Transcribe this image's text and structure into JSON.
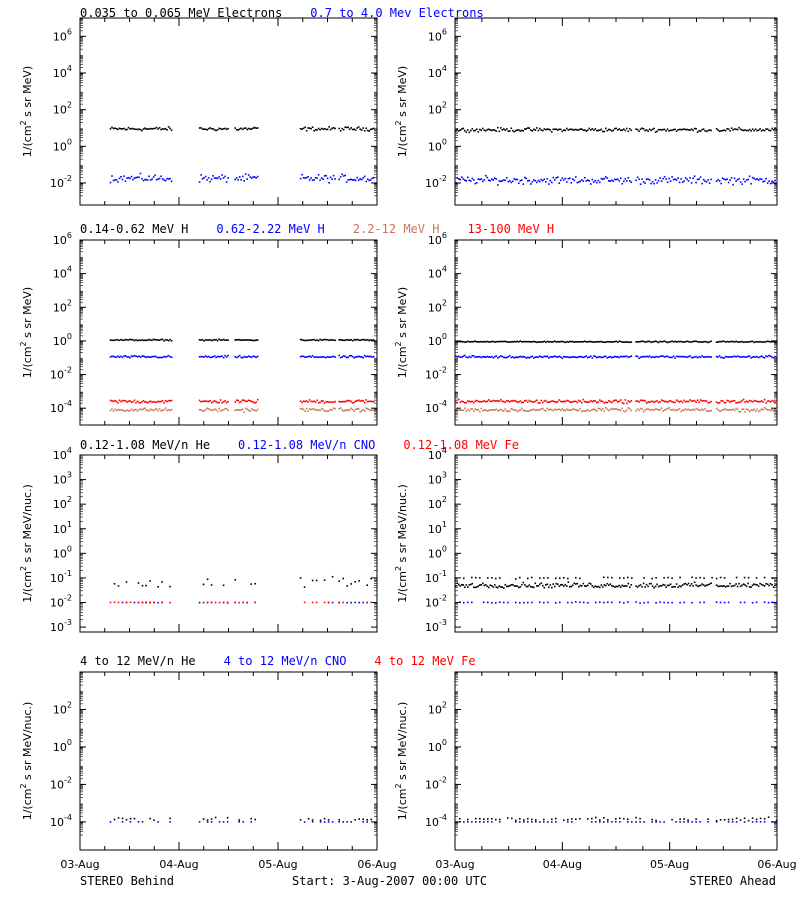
{
  "colors": {
    "black": "#000000",
    "blue": "#0000ff",
    "salmon": "#c8785a",
    "red": "#ff0000"
  },
  "x_ticks": [
    "03-Aug",
    "04-Aug",
    "05-Aug",
    "06-Aug"
  ],
  "footer": {
    "left": "STEREO Behind",
    "center": "Start:  3-Aug-2007 00:00 UTC",
    "right": "STEREO Ahead"
  },
  "chart_data": [
    {
      "type": "scatter",
      "row_title": [
        {
          "text": "0.035 to 0.065 MeV Electrons",
          "color": "black"
        },
        {
          "text": "0.7 to 4.0 Mev Electrons",
          "color": "blue"
        }
      ],
      "ylabel": {
        "pre": "1/(cm",
        "sup": "2",
        "post": " s sr MeV)"
      },
      "ylim_exp": [
        -3.2,
        7
      ],
      "y_ticks": [
        {
          "base": "10",
          "exp": "6",
          "value": 6
        },
        {
          "base": "10",
          "exp": "4",
          "value": 4
        },
        {
          "base": "10",
          "exp": "2",
          "value": 2
        },
        {
          "base": "10",
          "exp": "0",
          "value": 0
        },
        {
          "base": "10",
          "exp": "-2",
          "value": -2
        }
      ],
      "panels": [
        {
          "name": "STEREO Behind",
          "gaps": true,
          "series": [
            {
              "color": "black",
              "log10": 0.95,
              "scatter": 0.15
            },
            {
              "color": "blue",
              "log10": -1.75,
              "scatter": 0.3
            }
          ]
        },
        {
          "name": "STEREO Ahead",
          "gaps": false,
          "series": [
            {
              "color": "black",
              "log10": 0.9,
              "scatter": 0.15
            },
            {
              "color": "blue",
              "log10": -1.85,
              "scatter": 0.3
            }
          ]
        }
      ]
    },
    {
      "type": "scatter",
      "row_title": [
        {
          "text": "0.14-0.62 MeV H",
          "color": "black"
        },
        {
          "text": "0.62-2.22 MeV H",
          "color": "blue"
        },
        {
          "text": "2.2-12 MeV H",
          "color": "salmon"
        },
        {
          "text": "13-100 MeV H",
          "color": "red"
        }
      ],
      "ylabel": {
        "pre": "1/(cm",
        "sup": "2",
        "post": " s sr MeV)"
      },
      "ylim_exp": [
        -5,
        6
      ],
      "y_ticks": [
        {
          "base": "10",
          "exp": "6",
          "value": 6
        },
        {
          "base": "10",
          "exp": "4",
          "value": 4
        },
        {
          "base": "10",
          "exp": "2",
          "value": 2
        },
        {
          "base": "10",
          "exp": "0",
          "value": 0
        },
        {
          "base": "10",
          "exp": "-2",
          "value": -2
        },
        {
          "base": "10",
          "exp": "-4",
          "value": -4
        }
      ],
      "panels": [
        {
          "name": "STEREO Behind",
          "gaps": true,
          "series": [
            {
              "color": "black",
              "log10": 0.05,
              "scatter": 0.06
            },
            {
              "color": "blue",
              "log10": -0.95,
              "scatter": 0.1
            },
            {
              "color": "red",
              "log10": -3.6,
              "scatter": 0.15
            },
            {
              "color": "salmon",
              "log10": -4.1,
              "scatter": 0.15
            }
          ]
        },
        {
          "name": "STEREO Ahead",
          "gaps": false,
          "series": [
            {
              "color": "black",
              "log10": -0.05,
              "scatter": 0.05
            },
            {
              "color": "blue",
              "log10": -0.95,
              "scatter": 0.1
            },
            {
              "color": "red",
              "log10": -3.6,
              "scatter": 0.15
            },
            {
              "color": "salmon",
              "log10": -4.1,
              "scatter": 0.15
            }
          ]
        }
      ]
    },
    {
      "type": "scatter",
      "row_title": [
        {
          "text": "0.12-1.08 MeV/n He",
          "color": "black"
        },
        {
          "text": "0.12-1.08 MeV/n CNO",
          "color": "blue"
        },
        {
          "text": "0.12-1.08 MeV Fe",
          "color": "red"
        }
      ],
      "ylabel": {
        "pre": "1/(cm",
        "sup": "2",
        "post": " s sr MeV/nuc.)"
      },
      "ylim_exp": [
        -3.2,
        4
      ],
      "y_ticks": [
        {
          "base": "10",
          "exp": "4",
          "value": 4
        },
        {
          "base": "10",
          "exp": "3",
          "value": 3
        },
        {
          "base": "10",
          "exp": "2",
          "value": 2
        },
        {
          "base": "10",
          "exp": "1",
          "value": 1
        },
        {
          "base": "10",
          "exp": "0",
          "value": 0
        },
        {
          "base": "10",
          "exp": "-1",
          "value": -1
        },
        {
          "base": "10",
          "exp": "-2",
          "value": -2
        },
        {
          "base": "10",
          "exp": "-3",
          "value": -3
        }
      ],
      "panels": [
        {
          "name": "STEREO Behind",
          "gaps": true,
          "series": [
            {
              "color": "black",
              "log10": -1.2,
              "scatter": 0.35,
              "sparse": true
            },
            {
              "color": "blue",
              "log10": -2,
              "scatter": 0.02,
              "sparse": true
            },
            {
              "color": "red",
              "log10": -2,
              "scatter": 0.02,
              "sparse": true
            }
          ]
        },
        {
          "name": "STEREO Ahead",
          "gaps": false,
          "series": [
            {
              "color": "black",
              "log10": -1.3,
              "scatter": 0.15,
              "sparse": false
            },
            {
              "color": "black",
              "log10": -1.0,
              "scatter": 0.05,
              "sparse": true
            },
            {
              "color": "blue",
              "log10": -2,
              "scatter": 0.03,
              "sparse": true
            }
          ]
        }
      ]
    },
    {
      "type": "scatter",
      "row_title": [
        {
          "text": "4 to 12 MeV/n He",
          "color": "black"
        },
        {
          "text": "4 to 12 MeV/n CNO",
          "color": "blue"
        },
        {
          "text": "4 to 12 MeV Fe",
          "color": "red"
        }
      ],
      "ylabel": {
        "pre": "1/(cm",
        "sup": "2",
        "post": " s sr MeV/nuc.)"
      },
      "ylim_exp": [
        -5.5,
        4
      ],
      "y_ticks": [
        {
          "base": "10",
          "exp": "2",
          "value": 2
        },
        {
          "base": "10",
          "exp": "0",
          "value": 0
        },
        {
          "base": "10",
          "exp": "-2",
          "value": -2
        },
        {
          "base": "10",
          "exp": "-4",
          "value": -4
        }
      ],
      "panels": [
        {
          "name": "STEREO Behind",
          "gaps": true,
          "series": [
            {
              "color": "blue",
              "log10": -4,
              "scatter": 0.01,
              "sparse": true
            },
            {
              "color": "black",
              "log10": -3.85,
              "scatter": 0.12,
              "sparse": true
            }
          ]
        },
        {
          "name": "STEREO Ahead",
          "gaps": false,
          "series": [
            {
              "color": "blue",
              "log10": -4,
              "scatter": 0.01,
              "sparse": true
            },
            {
              "color": "black",
              "log10": -3.85,
              "scatter": 0.12,
              "sparse": true
            }
          ]
        }
      ]
    }
  ]
}
